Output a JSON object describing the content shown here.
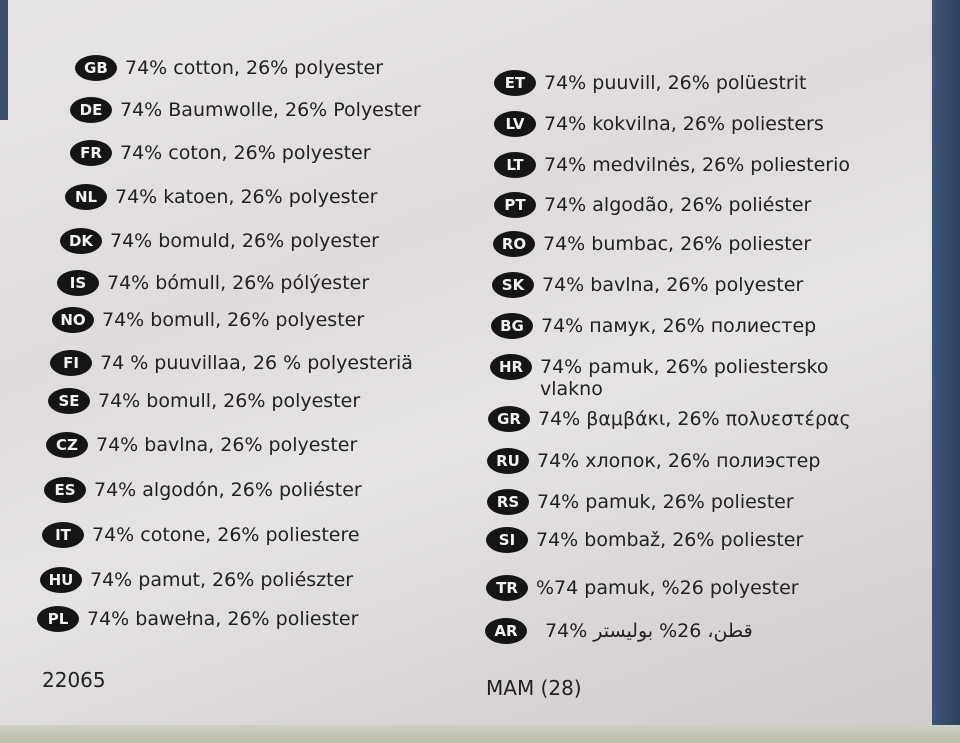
{
  "left_column": [
    {
      "code": "GB",
      "text": "74% cotton, 26% polyester"
    },
    {
      "code": "DE",
      "text": "74% Baumwolle, 26% Polyester"
    },
    {
      "code": "FR",
      "text": "74% coton, 26% polyester"
    },
    {
      "code": "NL",
      "text": "74% katoen, 26% polyester"
    },
    {
      "code": "DK",
      "text": "74% bomuld, 26% polyester"
    },
    {
      "code": "IS",
      "text": "74% bómull, 26% pólýester"
    },
    {
      "code": "NO",
      "text": "74% bomull, 26% polyester"
    },
    {
      "code": "FI",
      "text": "74 % puuvillaa, 26 % polyesteriä"
    },
    {
      "code": "SE",
      "text": "74% bomull, 26% polyester"
    },
    {
      "code": "CZ",
      "text": "74% bavlna, 26% polyester"
    },
    {
      "code": "ES",
      "text": "74% algodón, 26% poliéster"
    },
    {
      "code": "IT",
      "text": "74% cotone, 26% poliestere"
    },
    {
      "code": "HU",
      "text": "74% pamut, 26% poliészter"
    },
    {
      "code": "PL",
      "text": "74% bawełna, 26% poliester"
    }
  ],
  "right_column": [
    {
      "code": "ET",
      "text": "74% puuvill, 26% polüestrit"
    },
    {
      "code": "LV",
      "text": "74% kokvilna, 26% poliesters"
    },
    {
      "code": "LT",
      "text": "74% medvilnės, 26% poliesterio"
    },
    {
      "code": "PT",
      "text": "74% algodão, 26% poliéster"
    },
    {
      "code": "RO",
      "text": "74% bumbac, 26% poliester"
    },
    {
      "code": "SK",
      "text": "74% bavlna, 26% polyester"
    },
    {
      "code": "BG",
      "text": "74% памук, 26% полиестер"
    },
    {
      "code": "HR",
      "text": "74% pamuk, 26% poliestersko\nvlakno"
    },
    {
      "code": "GR",
      "text": "74% βαμβάκι, 26% πολυεστέρας"
    },
    {
      "code": "RU",
      "text": "74% хлопок, 26% полиэстер"
    },
    {
      "code": "RS",
      "text": "74% pamuk, 26% poliester"
    },
    {
      "code": "SI",
      "text": "74% bombaž, 26% poliester"
    },
    {
      "code": "TR",
      "text": "%74 pamuk, %26 polyester"
    },
    {
      "code": "AR",
      "text": "قطن، 26% بوليستر %74",
      "rtl": true
    }
  ],
  "footer": {
    "left_code": "22065",
    "right_code": "MAM (28)"
  },
  "colors": {
    "badge": "#151515",
    "paper": "#e4e1e3",
    "fabric_edge": "#3f5575"
  }
}
